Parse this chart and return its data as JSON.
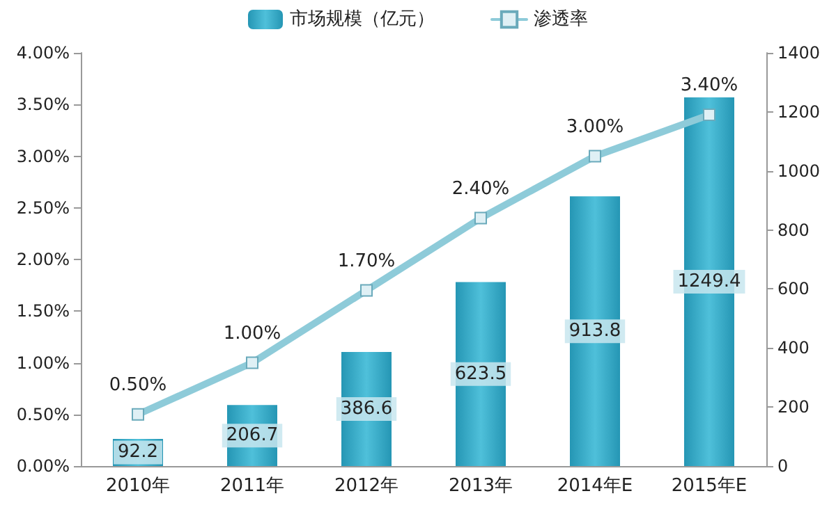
{
  "chart_data": {
    "type": "bar",
    "categories": [
      "2010年",
      "2011年",
      "2012年",
      "2013年",
      "2014年E",
      "2015年E"
    ],
    "series": [
      {
        "name": "市场规模（亿元）",
        "axis": "y2",
        "color": "#2596b4",
        "values": [
          92.2,
          206.7,
          386.6,
          623.5,
          913.8,
          1249.4
        ],
        "value_labels": [
          "92.2",
          "206.7",
          "386.6",
          "623.5",
          "913.8",
          "1249.4"
        ]
      },
      {
        "name": "渗透率",
        "type": "line",
        "color": "#8ecbd9",
        "marker": "square",
        "values": [
          0.5,
          1.0,
          1.7,
          2.4,
          3.0,
          3.4
        ],
        "value_labels": [
          "0.50%",
          "1.00%",
          "1.70%",
          "2.40%",
          "3.00%",
          "3.40%"
        ]
      }
    ],
    "ylim": [
      0,
      4
    ],
    "yticks": [
      {
        "value": 0,
        "label": "0.00%"
      },
      {
        "value": 0.5,
        "label": "0.50%"
      },
      {
        "value": 1,
        "label": "1.00%"
      },
      {
        "value": 1.5,
        "label": "1.50%"
      },
      {
        "value": 2,
        "label": "2.00%"
      },
      {
        "value": 2.5,
        "label": "2.50%"
      },
      {
        "value": 3,
        "label": "3.00%"
      },
      {
        "value": 3.5,
        "label": "3.50%"
      },
      {
        "value": 4,
        "label": "4.00%"
      }
    ],
    "y2lim": [
      0,
      1400
    ],
    "y2ticks": [
      0,
      200,
      400,
      600,
      800,
      1000,
      1200,
      1400
    ],
    "legend": "top",
    "grid": false
  }
}
